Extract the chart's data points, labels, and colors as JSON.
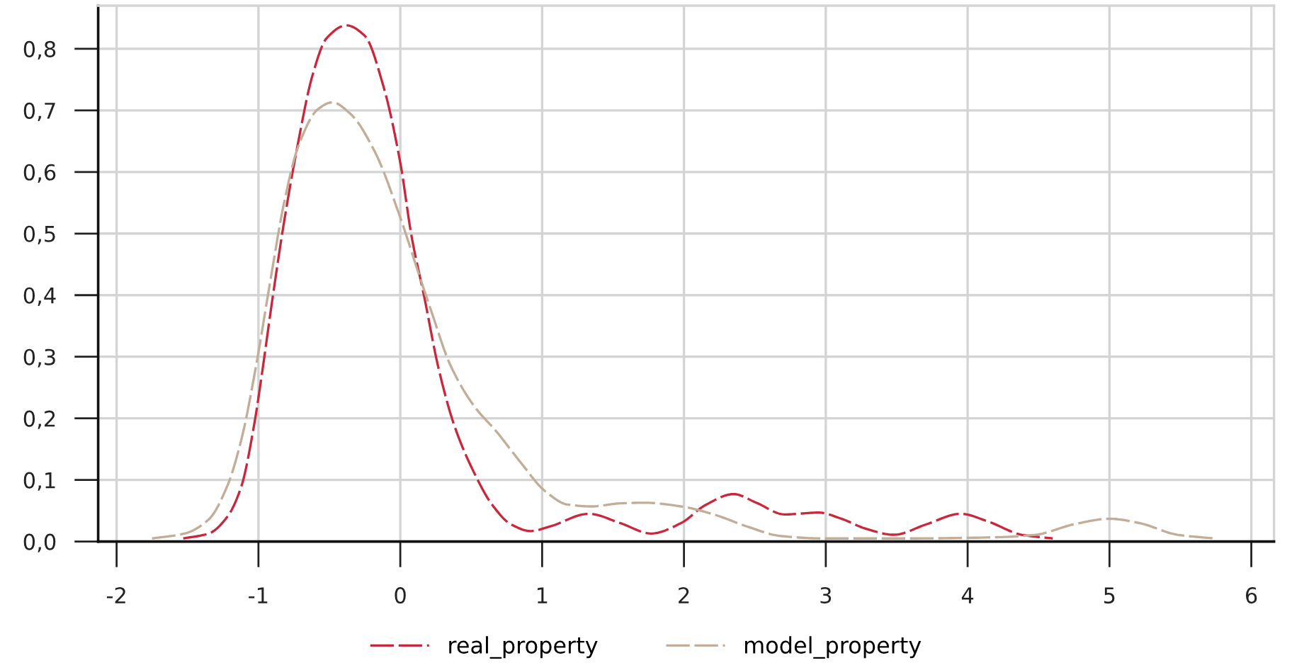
{
  "chart_data": {
    "type": "line",
    "xlim": [
      -2.13,
      6.16
    ],
    "ylim": [
      0,
      0.87
    ],
    "xticks": [
      -2,
      -1,
      0,
      1,
      2,
      3,
      4,
      5,
      6
    ],
    "yticks": [
      {
        "value": 0,
        "label": "0,0"
      },
      {
        "value": 0.1,
        "label": "0,1"
      },
      {
        "value": 0.2,
        "label": "0,2"
      },
      {
        "value": 0.3,
        "label": "0,3"
      },
      {
        "value": 0.4,
        "label": "0,4"
      },
      {
        "value": 0.5,
        "label": "0,5"
      },
      {
        "value": 0.6,
        "label": "0,6"
      },
      {
        "value": 0.7,
        "label": "0,7"
      },
      {
        "value": 0.8,
        "label": "0,8"
      }
    ],
    "grid": true,
    "legend": "bottom",
    "line_style": "dashed",
    "marker": "none",
    "series": [
      {
        "name": "real_property",
        "color": "#c9283c",
        "x": [
          -1.53,
          -1.35,
          -1.22,
          -1.12,
          -1.03,
          -0.98,
          -0.9,
          -0.82,
          -0.72,
          -0.62,
          -0.52,
          -0.38,
          -0.25,
          -0.12,
          0,
          0.08,
          0.17,
          0.27,
          0.38,
          0.52,
          0.65,
          0.78,
          0.92,
          1.05,
          1.33,
          1.55,
          1.77,
          1.98,
          2.15,
          2.35,
          2.51,
          2.71,
          2.95,
          3.11,
          3.28,
          3.48,
          3.71,
          3.95,
          4.15,
          4.38,
          4.6
        ],
        "values": [
          0.005,
          0.013,
          0.04,
          0.09,
          0.19,
          0.265,
          0.396,
          0.518,
          0.648,
          0.756,
          0.817,
          0.838,
          0.821,
          0.74,
          0.615,
          0.495,
          0.396,
          0.281,
          0.189,
          0.112,
          0.059,
          0.028,
          0.017,
          0.024,
          0.045,
          0.03,
          0.013,
          0.03,
          0.059,
          0.077,
          0.063,
          0.044,
          0.047,
          0.037,
          0.021,
          0.011,
          0.028,
          0.045,
          0.032,
          0.011,
          0.005
        ]
      },
      {
        "name": "model_property",
        "color": "#c2ae98",
        "x": [
          -1.75,
          -1.52,
          -1.35,
          -1.22,
          -1.12,
          -1.02,
          -0.92,
          -0.82,
          -0.72,
          -0.58,
          -0.48,
          -0.35,
          -0.18,
          0,
          0.12,
          0.22,
          0.35,
          0.52,
          0.68,
          0.85,
          1.02,
          1.18,
          1.35,
          1.55,
          1.72,
          1.98,
          2.21,
          2.45,
          2.68,
          2.98,
          3.55,
          4.21,
          4.48,
          4.75,
          5.0,
          5.21,
          5.48,
          5.74
        ],
        "values": [
          0.005,
          0.013,
          0.036,
          0.09,
          0.166,
          0.281,
          0.418,
          0.549,
          0.641,
          0.702,
          0.713,
          0.694,
          0.633,
          0.526,
          0.442,
          0.373,
          0.288,
          0.22,
          0.178,
          0.128,
          0.082,
          0.06,
          0.057,
          0.062,
          0.063,
          0.057,
          0.044,
          0.024,
          0.009,
          0.005,
          0.005,
          0.007,
          0.011,
          0.028,
          0.037,
          0.03,
          0.011,
          0.005
        ]
      }
    ]
  }
}
